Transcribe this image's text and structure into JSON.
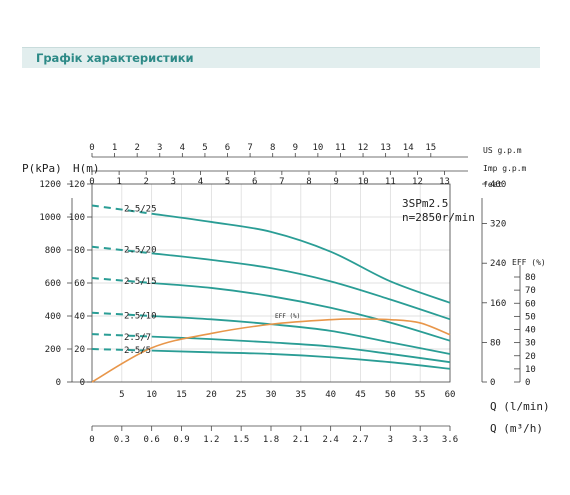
{
  "page_title": "Графік характеристики",
  "chart_data": {
    "type": "line",
    "model": "3SPm2.5",
    "speed": "n=2850r/min",
    "axes": {
      "x_lmin": {
        "label": "Q (l/min)",
        "range": [
          0,
          60
        ],
        "ticks": [
          "5",
          "10",
          "15",
          "20",
          "25",
          "30",
          "35",
          "40",
          "45",
          "50",
          "55",
          "60"
        ]
      },
      "x_m3h": {
        "label": "Q (m³/h)",
        "range": [
          0,
          3.6
        ],
        "ticks": [
          "0",
          "0.3",
          "0.6",
          "0.9",
          "1.2",
          "1.5",
          "1.8",
          "2.1",
          "2.4",
          "2.7",
          "3",
          "3.3",
          "3.6"
        ]
      },
      "x_usgpm": {
        "label": "US g.p.m",
        "range": [
          0,
          15.85
        ],
        "ticks": [
          "0",
          "1",
          "2",
          "3",
          "4",
          "5",
          "6",
          "7",
          "8",
          "9",
          "10",
          "11",
          "12",
          "13",
          "14",
          "15"
        ]
      },
      "x_impgpm": {
        "label": "Imp g.p.m",
        "range": [
          0,
          13.2
        ],
        "ticks": [
          "0",
          "1",
          "2",
          "3",
          "4",
          "5",
          "6",
          "7",
          "8",
          "9",
          "10",
          "11",
          "12",
          "13"
        ]
      },
      "y_m": {
        "label": "H(m)",
        "range": [
          0,
          120
        ],
        "ticks": [
          "0",
          "20",
          "40",
          "60",
          "80",
          "100",
          "120"
        ]
      },
      "y_kpa": {
        "label": "P(kPa)",
        "range": [
          0,
          1200
        ],
        "ticks": [
          "0",
          "200",
          "400",
          "600",
          "800",
          "1000",
          "1200"
        ]
      },
      "y_feet": {
        "label": "feet",
        "range": [
          0,
          400
        ],
        "ticks": [
          "0",
          "80",
          "160",
          "240",
          "320",
          "400"
        ]
      },
      "y_eff": {
        "label": "EFF (%)",
        "range": [
          0,
          80
        ],
        "ticks": [
          "0",
          "10",
          "20",
          "30",
          "40",
          "50",
          "60",
          "70",
          "80"
        ]
      }
    },
    "series": [
      {
        "name": "2.5/25",
        "q": [
          0,
          10,
          20,
          30,
          40,
          50,
          60
        ],
        "h": [
          107,
          102,
          97,
          91,
          79,
          61,
          48
        ]
      },
      {
        "name": "2.5/20",
        "q": [
          0,
          10,
          20,
          30,
          40,
          50,
          60
        ],
        "h": [
          82,
          78,
          74,
          69,
          61,
          50,
          38
        ]
      },
      {
        "name": "2.5/15",
        "q": [
          0,
          10,
          20,
          30,
          40,
          50,
          60
        ],
        "h": [
          63,
          60,
          57,
          52,
          45,
          36,
          25
        ]
      },
      {
        "name": "2.5/10",
        "q": [
          0,
          10,
          20,
          30,
          40,
          50,
          60
        ],
        "h": [
          42,
          40,
          38,
          35,
          31,
          24,
          17
        ]
      },
      {
        "name": "2.5/7",
        "q": [
          0,
          10,
          20,
          30,
          40,
          50,
          60
        ],
        "h": [
          29,
          27.5,
          26,
          24,
          21.5,
          17,
          12
        ]
      },
      {
        "name": "2.5/5",
        "q": [
          0,
          10,
          20,
          30,
          40,
          50,
          60
        ],
        "h": [
          20,
          19,
          18,
          17,
          15,
          12,
          8
        ]
      }
    ],
    "efficiency": {
      "name": "EFF (%)",
      "q": [
        0,
        10,
        20,
        30,
        40,
        45,
        50,
        55,
        60
      ],
      "eff": [
        0,
        26,
        37,
        44,
        47.5,
        48,
        47.5,
        45,
        36
      ]
    },
    "colors": {
      "curves": "#2a9d95",
      "efficiency": "#e8964a",
      "header": "#2d8a87"
    }
  }
}
